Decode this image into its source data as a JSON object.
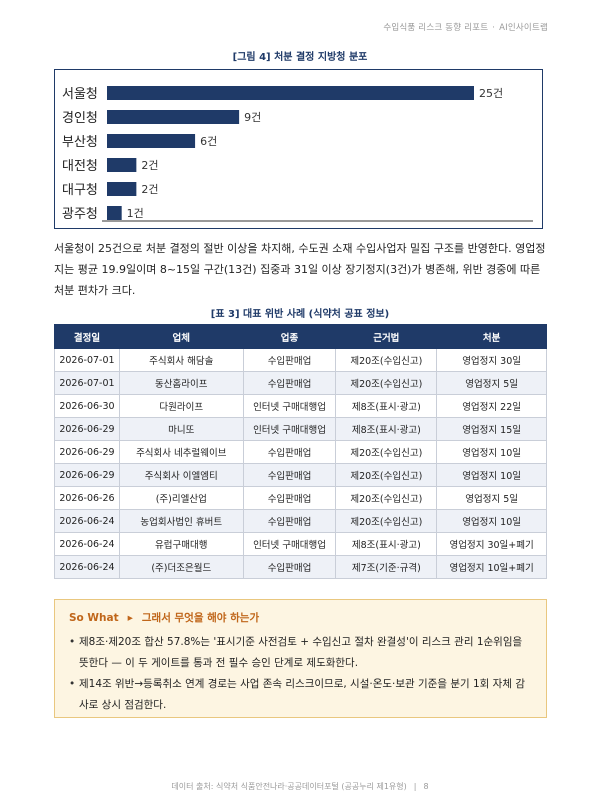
{
  "header": {
    "report_title": "수입식품 리스크 동향 리포트",
    "separator": "·",
    "brand": "AI인사이트랩"
  },
  "figure": {
    "caption": "[그림 4] 처분 결정 지방청 분포"
  },
  "chart_data": {
    "type": "bar",
    "orientation": "horizontal",
    "title": "",
    "categories": [
      "서울청",
      "경인청",
      "부산청",
      "대전청",
      "대구청",
      "광주청"
    ],
    "values": [
      25,
      9,
      6,
      2,
      2,
      1
    ],
    "value_labels": [
      "25건",
      "9건",
      "6건",
      "2건",
      "2건",
      "1건"
    ],
    "xlabel": "",
    "ylabel": "",
    "xlim": [
      0,
      25
    ],
    "grid": false,
    "bar_color": "#1f3a68"
  },
  "body": {
    "paragraph": "서울청이 25건으로 처분 결정의 절반 이상을 차지해, 수도권 소재 수입사업자 밀집 구조를 반영한다. 영업정지는 평균 19.9일이며 8~15일 구간(13건) 집중과 31일 이상 장기정지(3건)가 병존해, 위반 경중에 따른 처분 편차가 크다."
  },
  "table": {
    "caption": "[표 3] 대표 위반 사례 (식약처 공표 정보)",
    "headers": [
      "결정일",
      "업체",
      "업종",
      "근거법",
      "처분"
    ],
    "rows": [
      [
        "2026-07-01",
        "주식회사 해담솔",
        "수입판매업",
        "제20조(수입신고)",
        "영업정지 30일"
      ],
      [
        "2026-07-01",
        "동산홈라이프",
        "수입판매업",
        "제20조(수입신고)",
        "영업정지 5일"
      ],
      [
        "2026-06-30",
        "다원라이프",
        "인터넷 구매대행업",
        "제8조(표시·광고)",
        "영업정지 22일"
      ],
      [
        "2026-06-29",
        "마니또",
        "인터넷 구매대행업",
        "제8조(표시·광고)",
        "영업정지 15일"
      ],
      [
        "2026-06-29",
        "주식회사 네추럴웨이브",
        "수입판매업",
        "제20조(수입신고)",
        "영업정지 10일"
      ],
      [
        "2026-06-29",
        "주식회사 이엘엠티",
        "수입판매업",
        "제20조(수입신고)",
        "영업정지 10일"
      ],
      [
        "2026-06-26",
        "(주)리엘산업",
        "수입판매업",
        "제20조(수입신고)",
        "영업정지 5일"
      ],
      [
        "2026-06-24",
        "농업회사법인 휴버트",
        "수입판매업",
        "제20조(수입신고)",
        "영업정지 10일"
      ],
      [
        "2026-06-24",
        "유럽구매대행",
        "인터넷 구매대행업",
        "제8조(표시·광고)",
        "영업정지 30일+폐기"
      ],
      [
        "2026-06-24",
        "(주)더조은월드",
        "수입판매업",
        "제7조(기준·규격)",
        "영업정지 10일+폐기"
      ]
    ]
  },
  "sowhat": {
    "label": "So What",
    "arrow": "▸",
    "title": "그래서 무엇을 해야 하는가",
    "bullets": [
      "제8조·제20조 합산 57.8%는 '표시기준 사전검토 + 수입신고 절차 완결성'이 리스크 관리 1순위임을 뜻한다 — 이 두 게이트를 통과 전 필수 승인 단계로 제도화한다.",
      "제14조 위반→등록취소 연계 경로는 사업 존속 리스크이므로, 시설·온도·보관 기준을 분기 1회 자체 감사로 상시 점검한다."
    ]
  },
  "footer": {
    "source": "데이터 출처: 식약처 식품안전나라·공공데이터포털 (공공누리 제1유형)",
    "separator": "|",
    "page": "8"
  }
}
